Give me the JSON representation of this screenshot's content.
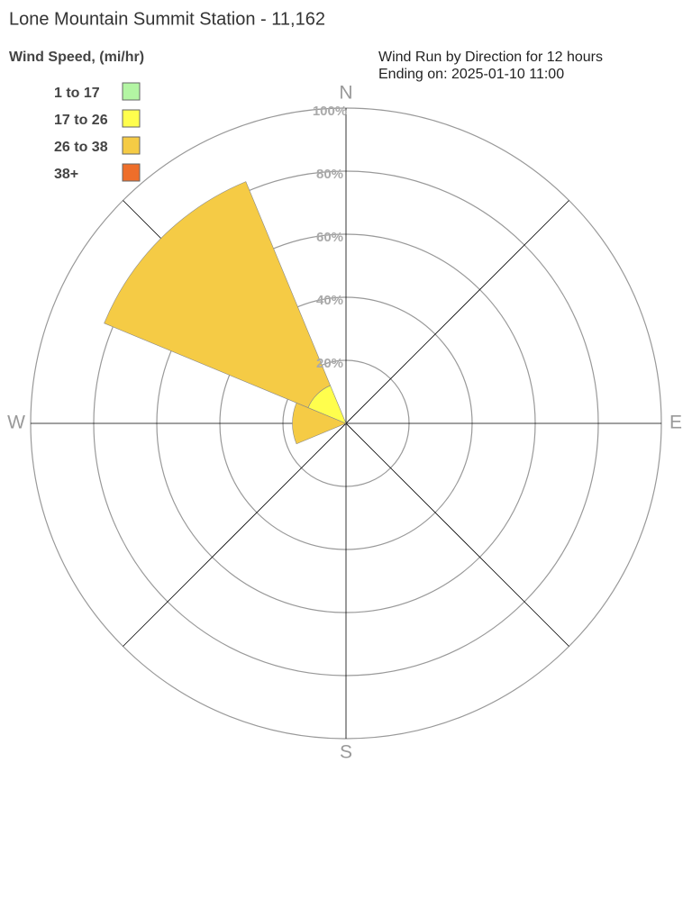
{
  "chart_data": {
    "type": "windrose",
    "title": "Lone Mountain Summit Station - 11,162",
    "subtitle": [
      "Wind Run by Direction for 12 hours",
      "Ending on: 2025-01-10 11:00"
    ],
    "legend_title": "Wind Speed, (mi/hr)",
    "categories": [
      "N",
      null,
      "E",
      null,
      "S",
      null,
      "W",
      null
    ],
    "series": [
      {
        "name": "1 to 17",
        "color": "#b3f5a3",
        "values": [
          0,
          0,
          0,
          0,
          0,
          0,
          0,
          0
        ]
      },
      {
        "name": "17 to 26",
        "color": "#fffe4d",
        "values": [
          0,
          0,
          0,
          0,
          0,
          0,
          0,
          13
        ]
      },
      {
        "name": "26 to 38",
        "color": "#f5cb45",
        "values": [
          0,
          0,
          0,
          0,
          0,
          0,
          17,
          70
        ]
      },
      {
        "name": "38+",
        "color": "#ee6e2a",
        "values": [
          0,
          0,
          0,
          0,
          0,
          0,
          0,
          0
        ]
      }
    ],
    "rlim": [
      0,
      100
    ],
    "rticks": [
      {
        "value": 20,
        "label": "20%"
      },
      {
        "value": 40,
        "label": "40%"
      },
      {
        "value": 60,
        "label": "60%"
      },
      {
        "value": 80,
        "label": "80%"
      },
      {
        "value": 100,
        "label": "100%"
      }
    ],
    "grid": true
  }
}
